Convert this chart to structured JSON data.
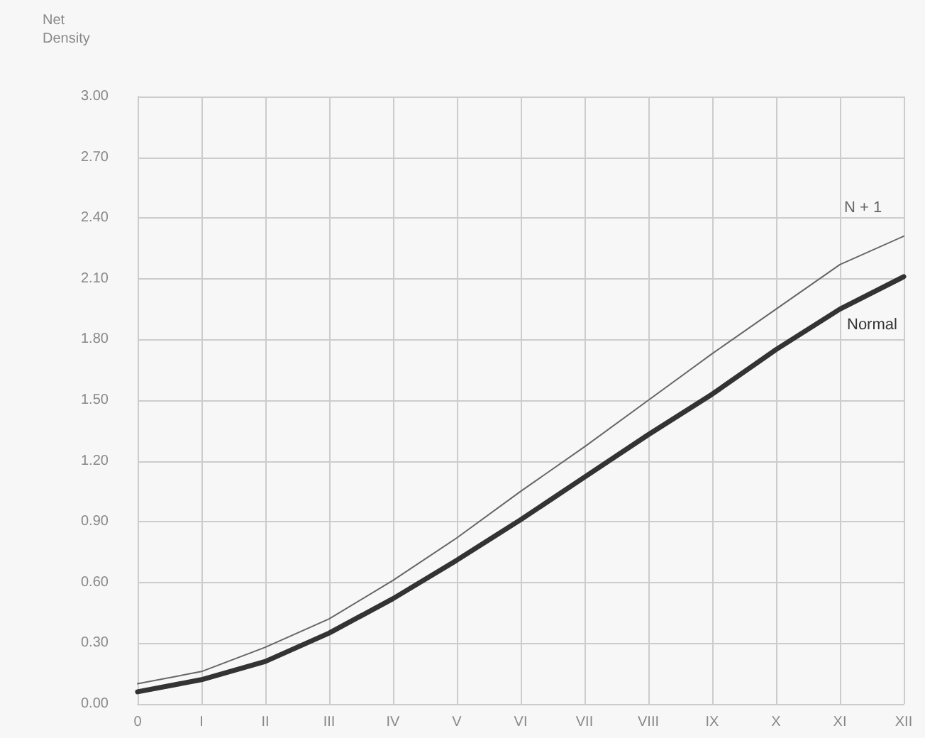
{
  "chart_data": {
    "type": "line",
    "ylabel": "Net Density",
    "categories": [
      "0",
      "I",
      "II",
      "III",
      "IV",
      "V",
      "VI",
      "VII",
      "VIII",
      "IX",
      "X",
      "XI",
      "XII"
    ],
    "series": [
      {
        "name": "N + 1",
        "color": "#666666",
        "values": [
          0.1,
          0.16,
          0.28,
          0.42,
          0.61,
          0.82,
          1.05,
          1.27,
          1.5,
          1.73,
          1.95,
          2.17,
          2.31
        ]
      },
      {
        "name": "Normal",
        "color": "#333333",
        "values": [
          0.06,
          0.12,
          0.21,
          0.35,
          0.52,
          0.71,
          0.91,
          1.12,
          1.33,
          1.53,
          1.75,
          1.95,
          2.11
        ]
      }
    ],
    "ylim": [
      0,
      3
    ],
    "yticks": [
      {
        "value": 0,
        "label": "0.00"
      },
      {
        "value": 0.3,
        "label": "0.30"
      },
      {
        "value": 0.6,
        "label": "0.60"
      },
      {
        "value": 0.9,
        "label": "0.90"
      },
      {
        "value": 1.2,
        "label": "1.20"
      },
      {
        "value": 1.5,
        "label": "1.50"
      },
      {
        "value": 1.8,
        "label": "1.80"
      },
      {
        "value": 2.1,
        "label": "2.10"
      },
      {
        "value": 2.4,
        "label": "2.40"
      },
      {
        "value": 2.7,
        "label": "2.70"
      },
      {
        "value": 3,
        "label": "3.00"
      }
    ],
    "grid": true,
    "legend": false,
    "marker": "none",
    "line_style": "solid"
  }
}
